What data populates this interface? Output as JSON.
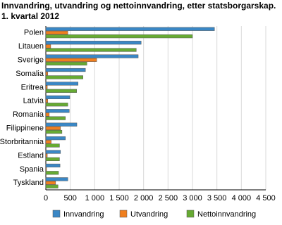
{
  "chart_data": {
    "type": "hbar",
    "title": "Innvandring, utvandring og nettoinnvandring, etter statsborgarskap.",
    "subtitle": "1. kvartal 2012",
    "categories": [
      "Polen",
      "Litauen",
      "Sverige",
      "Somalia",
      "Eritrea",
      "Latvia",
      "Romania",
      "Filippinene",
      "Storbritannia",
      "Estland",
      "Spania",
      "Tyskland"
    ],
    "series": [
      {
        "name": "Innvandring",
        "color": "#3a87c5",
        "values": [
          3450,
          1950,
          1890,
          810,
          660,
          490,
          480,
          635,
          400,
          300,
          290,
          450
        ]
      },
      {
        "name": "Utvandring",
        "color": "#f07f1e",
        "values": [
          450,
          100,
          1040,
          40,
          30,
          40,
          70,
          300,
          110,
          30,
          15,
          200
        ]
      },
      {
        "name": "Nettoinnvandring",
        "color": "#66aa33",
        "values": [
          3000,
          1850,
          840,
          760,
          630,
          450,
          400,
          330,
          280,
          280,
          260,
          250
        ]
      }
    ],
    "xlim": [
      0,
      4500
    ],
    "xticks": [
      0,
      500,
      {
        "value": 1000,
        "label": "1 000"
      },
      {
        "value": 1500,
        "label": "1 500"
      },
      {
        "value": 2000,
        "label": "2 000"
      },
      {
        "value": 2500,
        "label": "2 500"
      },
      {
        "value": 3000,
        "label": "3 000"
      },
      {
        "value": 3500,
        "label": "3 500"
      },
      {
        "value": 4000,
        "label": "4 000"
      },
      {
        "value": 4500,
        "label": "4 500"
      }
    ],
    "grid": true,
    "legend": "bottom"
  }
}
